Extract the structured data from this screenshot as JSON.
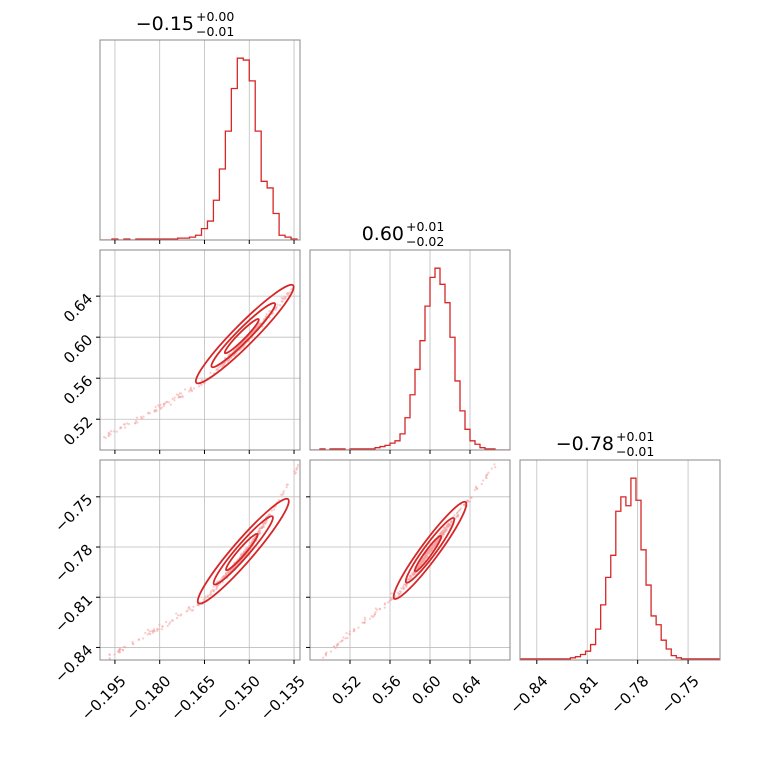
{
  "figure": {
    "kind": "corner-plot",
    "colors": {
      "line": "#d62728",
      "scatter": "#f4a0a0",
      "frame": "#888888",
      "grid": "#bdbdbd"
    }
  },
  "chart_data": [
    {
      "type": "histogram",
      "param": "p1",
      "title": {
        "main": "−0.15",
        "sup": "+0.00",
        "sub": "−0.01"
      },
      "xlim": [
        -0.2,
        -0.133
      ],
      "x_grid": [
        -0.195,
        -0.18,
        -0.165,
        -0.15,
        -0.135
      ],
      "bins": [
        -0.2,
        -0.198,
        -0.196,
        -0.194,
        -0.192,
        -0.19,
        -0.188,
        -0.186,
        -0.184,
        -0.182,
        -0.18,
        -0.178,
        -0.176,
        -0.174,
        -0.172,
        -0.17,
        -0.168,
        -0.166,
        -0.164,
        -0.162,
        -0.16,
        -0.158,
        -0.156,
        -0.154,
        -0.152,
        -0.15,
        -0.148,
        -0.146,
        -0.144,
        -0.142,
        -0.14,
        -0.138,
        -0.136,
        -0.134
      ],
      "counts": [
        0,
        0,
        1,
        0,
        1,
        0,
        1,
        1,
        1,
        1,
        1,
        1,
        1,
        2,
        2,
        3,
        5,
        12,
        20,
        42,
        75,
        115,
        160,
        192,
        190,
        168,
        115,
        62,
        55,
        28,
        5,
        3,
        1
      ]
    },
    {
      "type": "histogram",
      "param": "p2",
      "title": {
        "main": "0.60",
        "sup": "+0.01",
        "sub": "−0.02"
      },
      "xlim": [
        0.48,
        0.68
      ],
      "x_grid": [
        0.52,
        0.56,
        0.6,
        0.64
      ],
      "bins": [
        0.48,
        0.485,
        0.49,
        0.495,
        0.5,
        0.505,
        0.51,
        0.515,
        0.52,
        0.525,
        0.53,
        0.535,
        0.54,
        0.545,
        0.55,
        0.555,
        0.56,
        0.565,
        0.57,
        0.575,
        0.58,
        0.585,
        0.59,
        0.595,
        0.6,
        0.605,
        0.61,
        0.615,
        0.62,
        0.625,
        0.63,
        0.635,
        0.64,
        0.645,
        0.65,
        0.655,
        0.66,
        0.665,
        0.67,
        0.675,
        0.68
      ],
      "counts": [
        0,
        0,
        1,
        0,
        1,
        1,
        1,
        0,
        1,
        1,
        1,
        1,
        1,
        2,
        3,
        4,
        6,
        8,
        14,
        28,
        48,
        70,
        95,
        125,
        150,
        158,
        144,
        128,
        98,
        60,
        34,
        18,
        8,
        5,
        2,
        1,
        1,
        0,
        0,
        0
      ]
    },
    {
      "type": "histogram",
      "param": "p3",
      "title": {
        "main": "−0.78",
        "sup": "+0.01",
        "sub": "−0.01"
      },
      "xlim": [
        -0.85,
        -0.731
      ],
      "x_grid": [
        -0.84,
        -0.81,
        -0.78,
        -0.75
      ],
      "x_ticks": [
        "−0.84",
        "−0.81",
        "−0.78",
        "−0.75"
      ],
      "bins": [
        -0.85,
        -0.847,
        -0.844,
        -0.841,
        -0.838,
        -0.835,
        -0.832,
        -0.829,
        -0.826,
        -0.823,
        -0.82,
        -0.817,
        -0.814,
        -0.811,
        -0.808,
        -0.805,
        -0.802,
        -0.799,
        -0.796,
        -0.793,
        -0.79,
        -0.787,
        -0.784,
        -0.781,
        -0.778,
        -0.775,
        -0.772,
        -0.769,
        -0.766,
        -0.763,
        -0.76,
        -0.757,
        -0.754,
        -0.751,
        -0.748,
        -0.745,
        -0.742,
        -0.739,
        -0.736,
        -0.733,
        -0.73
      ],
      "counts": [
        1,
        1,
        1,
        1,
        1,
        1,
        1,
        1,
        1,
        1,
        2,
        3,
        5,
        8,
        14,
        28,
        50,
        75,
        95,
        135,
        148,
        140,
        165,
        145,
        100,
        68,
        40,
        32,
        18,
        10,
        4,
        2,
        1,
        1,
        1,
        1,
        1,
        1,
        1,
        1
      ]
    },
    {
      "type": "scatter",
      "params": [
        "p1",
        "p2"
      ],
      "xlim": [
        -0.2,
        -0.133
      ],
      "ylim": [
        0.49,
        0.685
      ],
      "x_grid": [
        -0.195,
        -0.18,
        -0.165,
        -0.15,
        -0.135
      ],
      "y_grid": [
        0.52,
        0.56,
        0.6,
        0.64
      ],
      "y_ticks": [
        "0.52",
        "0.56",
        "0.60",
        "0.64"
      ],
      "relation": {
        "x": [
          -0.2,
          -0.165,
          -0.15,
          -0.133
        ],
        "y": [
          0.5,
          0.556,
          0.6,
          0.655
        ]
      },
      "contours": [
        {
          "center": [
            -0.1515,
            0.603
          ],
          "long": 0.023,
          "short": 0.0035
        },
        {
          "center": [
            -0.152,
            0.602
          ],
          "long": 0.015,
          "short": 0.0022
        },
        {
          "center": [
            -0.1525,
            0.601
          ],
          "long": 0.008,
          "short": 0.0012
        }
      ]
    },
    {
      "type": "scatter",
      "params": [
        "p1",
        "p3"
      ],
      "xlim": [
        -0.2,
        -0.133
      ],
      "ylim": [
        -0.8475,
        -0.728
      ],
      "x_grid": [
        -0.195,
        -0.18,
        -0.165,
        -0.15,
        -0.135
      ],
      "y_grid": [
        -0.84,
        -0.81,
        -0.78,
        -0.75
      ],
      "x_ticks": [
        "−0.195",
        "−0.180",
        "−0.165",
        "−0.150",
        "−0.135"
      ],
      "y_ticks": [
        "−0.84",
        "−0.81",
        "−0.78",
        "−0.75"
      ],
      "relation": {
        "x": [
          -0.197,
          -0.165,
          -0.15,
          -0.133
        ],
        "y": [
          -0.846,
          -0.812,
          -0.781,
          -0.73
        ]
      },
      "contours": [
        {
          "center": [
            -0.152,
            -0.7825
          ],
          "long": 0.023,
          "short": 0.0035
        },
        {
          "center": [
            -0.152,
            -0.782
          ],
          "long": 0.015,
          "short": 0.0022
        },
        {
          "center": [
            -0.1525,
            -0.783
          ],
          "long": 0.008,
          "short": 0.0012
        }
      ]
    },
    {
      "type": "scatter",
      "params": [
        "p2",
        "p3"
      ],
      "xlim": [
        0.48,
        0.68
      ],
      "ylim": [
        -0.8475,
        -0.728
      ],
      "x_grid": [
        0.52,
        0.56,
        0.6,
        0.64
      ],
      "y_grid": [
        -0.84,
        -0.81,
        -0.78,
        -0.75
      ],
      "x_ticks": [
        "0.52",
        "0.56",
        "0.60",
        "0.64"
      ],
      "relation": {
        "x": [
          0.49,
          0.57,
          0.6,
          0.67
        ],
        "y": [
          -0.847,
          -0.807,
          -0.782,
          -0.727
        ]
      },
      "contours": [
        {
          "center": [
            0.6,
            -0.782
          ],
          "long": 0.06,
          "short": 0.009
        },
        {
          "center": [
            0.6,
            -0.782
          ],
          "long": 0.04,
          "short": 0.006
        },
        {
          "center": [
            0.598,
            -0.784
          ],
          "long": 0.022,
          "short": 0.0032
        }
      ]
    }
  ]
}
